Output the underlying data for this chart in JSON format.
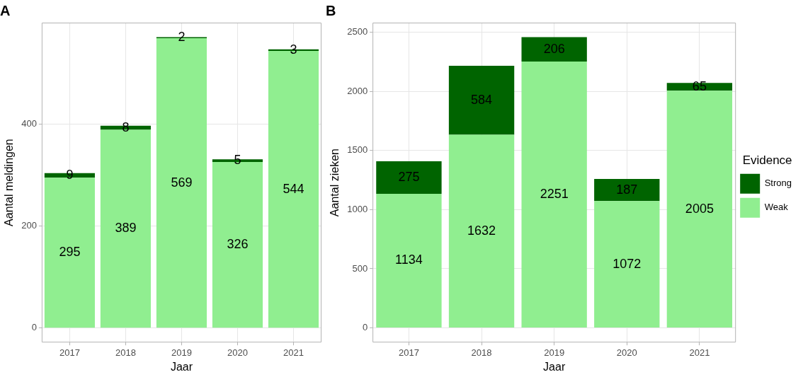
{
  "chart_data": [
    {
      "type": "bar",
      "title": "A",
      "xlabel": "Jaar",
      "ylabel": "Aantal meldingen",
      "categories": [
        "2017",
        "2018",
        "2019",
        "2020",
        "2021"
      ],
      "stacked": true,
      "series": [
        {
          "color": "#90ee90",
          "values": [
            295,
            389,
            569,
            326,
            544
          ]
        },
        {
          "color": "#006400",
          "values": [
            9,
            8,
            2,
            5,
            3
          ]
        }
      ],
      "ylim": [
        -28.5,
        599.5
      ],
      "yticks": [
        0,
        200,
        400
      ],
      "grid": true,
      "data_labels": true,
      "legend": false
    },
    {
      "type": "bar",
      "title": "B",
      "xlabel": "Jaar",
      "ylabel": "Aantal zieken",
      "legend_title": "Evidence",
      "categories": [
        "2017",
        "2018",
        "2019",
        "2020",
        "2021"
      ],
      "stacked": true,
      "series": [
        {
          "name": "Weak",
          "color": "#90ee90",
          "values": [
            1134,
            1632,
            2251,
            1072,
            2005
          ]
        },
        {
          "name": "Strong",
          "color": "#006400",
          "values": [
            275,
            584,
            206,
            187,
            65
          ]
        }
      ],
      "ylim": [
        -123,
        2580
      ],
      "yticks": [
        0,
        500,
        1000,
        1500,
        2000,
        2500
      ],
      "grid": true,
      "data_labels": true,
      "legend": "right"
    }
  ]
}
